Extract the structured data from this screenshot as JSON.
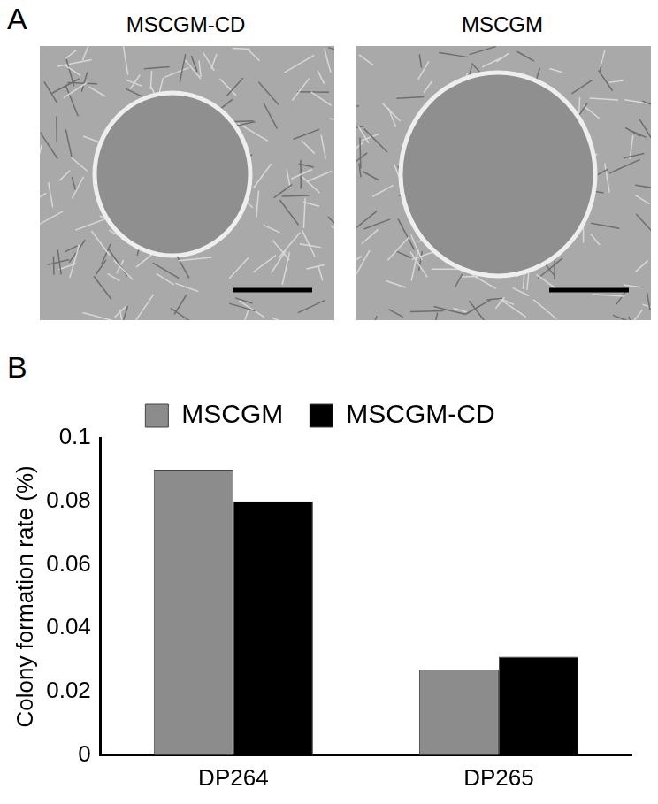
{
  "panel_a": {
    "label": "A",
    "images": [
      {
        "title": "MSCGM-CD"
      },
      {
        "title": "MSCGM"
      }
    ]
  },
  "panel_b": {
    "label": "B"
  },
  "chart_data": {
    "type": "bar",
    "y_label": "Colony formation rate (%)",
    "categories": [
      "DP264",
      "DP265"
    ],
    "series": [
      {
        "name": "MSCGM",
        "color": "#8c8c8c",
        "values": [
          0.09,
          0.027
        ]
      },
      {
        "name": "MSCGM-CD",
        "color": "#000000",
        "values": [
          0.08,
          0.031
        ]
      }
    ],
    "ylim": [
      0,
      0.1
    ],
    "yticks": [
      0,
      0.02,
      0.04,
      0.06,
      0.08,
      0.1
    ],
    "grid": false,
    "legend": "top"
  }
}
